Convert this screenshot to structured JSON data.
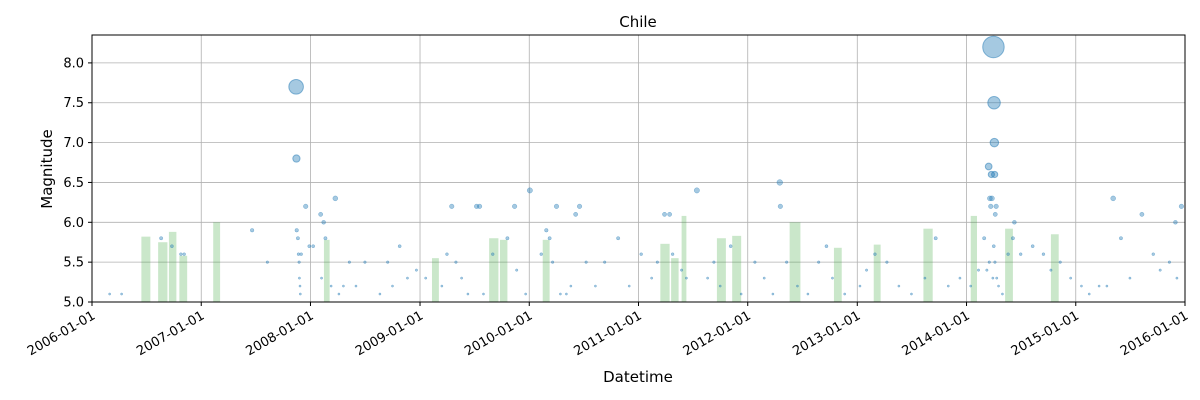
{
  "chart_data": {
    "type": "scatter",
    "title": "Chile",
    "xlabel": "Datetime",
    "ylabel": "Magnitude",
    "xlim": [
      "2006-01-01",
      "2016-01-01"
    ],
    "ylim": [
      5.0,
      8.35
    ],
    "x_ticks": [
      "2006-01-01",
      "2007-01-01",
      "2008-01-01",
      "2009-01-01",
      "2010-01-01",
      "2011-01-01",
      "2012-01-01",
      "2013-01-01",
      "2014-01-01",
      "2015-01-01",
      "2016-01-01"
    ],
    "y_ticks": [
      5.0,
      5.5,
      6.0,
      6.5,
      7.0,
      7.5,
      8.0
    ],
    "grid": true,
    "colors": {
      "points": "#1f77b4",
      "bars": "#2ca02c"
    },
    "highlight_points": [
      {
        "date": "2007-11-14",
        "mag": 7.7
      },
      {
        "date": "2007-11-15",
        "mag": 6.8
      },
      {
        "date": "2007-11-16",
        "mag": 5.9
      },
      {
        "date": "2007-12-16",
        "mag": 6.2
      },
      {
        "date": "2008-02-04",
        "mag": 6.1
      },
      {
        "date": "2008-02-14",
        "mag": 6.0
      },
      {
        "date": "2008-03-24",
        "mag": 6.3
      },
      {
        "date": "2009-04-17",
        "mag": 6.2
      },
      {
        "date": "2009-07-09",
        "mag": 6.2
      },
      {
        "date": "2009-07-19",
        "mag": 6.2
      },
      {
        "date": "2009-11-13",
        "mag": 6.2
      },
      {
        "date": "2010-01-03",
        "mag": 6.4
      },
      {
        "date": "2010-04-02",
        "mag": 6.2
      },
      {
        "date": "2010-06-05",
        "mag": 6.1
      },
      {
        "date": "2010-06-18",
        "mag": 6.2
      },
      {
        "date": "2011-03-29",
        "mag": 6.1
      },
      {
        "date": "2011-04-15",
        "mag": 6.1
      },
      {
        "date": "2011-07-15",
        "mag": 6.4
      },
      {
        "date": "2012-04-17",
        "mag": 6.5
      },
      {
        "date": "2012-04-19",
        "mag": 6.2
      },
      {
        "date": "2014-03-16",
        "mag": 6.7
      },
      {
        "date": "2014-03-20",
        "mag": 6.3
      },
      {
        "date": "2014-03-23",
        "mag": 6.2
      },
      {
        "date": "2014-03-25",
        "mag": 6.6
      },
      {
        "date": "2014-03-27",
        "mag": 6.3
      },
      {
        "date": "2014-04-01",
        "mag": 8.2
      },
      {
        "date": "2014-04-03",
        "mag": 7.5
      },
      {
        "date": "2014-04-04",
        "mag": 7.0
      },
      {
        "date": "2014-04-05",
        "mag": 6.6
      },
      {
        "date": "2014-04-07",
        "mag": 6.1
      },
      {
        "date": "2014-04-10",
        "mag": 6.2
      },
      {
        "date": "2014-06-10",
        "mag": 6.0
      },
      {
        "date": "2015-05-06",
        "mag": 6.3
      },
      {
        "date": "2015-08-10",
        "mag": 6.1
      },
      {
        "date": "2015-11-30",
        "mag": 6.0
      },
      {
        "date": "2015-12-20",
        "mag": 6.2
      }
    ],
    "background_points": [
      {
        "date": "2006-03-01",
        "mag": 5.1
      },
      {
        "date": "2006-04-10",
        "mag": 5.1
      },
      {
        "date": "2006-08-20",
        "mag": 5.8
      },
      {
        "date": "2006-09-25",
        "mag": 5.7
      },
      {
        "date": "2006-10-25",
        "mag": 5.6
      },
      {
        "date": "2006-11-05",
        "mag": 5.6
      },
      {
        "date": "2007-06-20",
        "mag": 5.9
      },
      {
        "date": "2007-08-10",
        "mag": 5.5
      },
      {
        "date": "2007-11-20",
        "mag": 5.8
      },
      {
        "date": "2007-11-22",
        "mag": 5.6
      },
      {
        "date": "2007-11-24",
        "mag": 5.5
      },
      {
        "date": "2007-11-25",
        "mag": 5.3
      },
      {
        "date": "2007-11-27",
        "mag": 5.2
      },
      {
        "date": "2007-11-28",
        "mag": 5.1
      },
      {
        "date": "2007-12-01",
        "mag": 5.6
      },
      {
        "date": "2007-12-28",
        "mag": 5.7
      },
      {
        "date": "2008-01-10",
        "mag": 5.7
      },
      {
        "date": "2008-02-07",
        "mag": 5.3
      },
      {
        "date": "2008-02-20",
        "mag": 5.8
      },
      {
        "date": "2008-03-10",
        "mag": 5.2
      },
      {
        "date": "2008-04-05",
        "mag": 5.1
      },
      {
        "date": "2008-04-20",
        "mag": 5.2
      },
      {
        "date": "2008-05-10",
        "mag": 5.5
      },
      {
        "date": "2008-06-01",
        "mag": 5.2
      },
      {
        "date": "2008-07-01",
        "mag": 5.5
      },
      {
        "date": "2008-08-20",
        "mag": 5.1
      },
      {
        "date": "2008-09-15",
        "mag": 5.5
      },
      {
        "date": "2008-10-01",
        "mag": 5.2
      },
      {
        "date": "2008-10-25",
        "mag": 5.7
      },
      {
        "date": "2008-11-20",
        "mag": 5.3
      },
      {
        "date": "2008-12-20",
        "mag": 5.4
      },
      {
        "date": "2009-01-20",
        "mag": 5.3
      },
      {
        "date": "2009-03-15",
        "mag": 5.2
      },
      {
        "date": "2009-04-01",
        "mag": 5.6
      },
      {
        "date": "2009-05-01",
        "mag": 5.5
      },
      {
        "date": "2009-05-20",
        "mag": 5.3
      },
      {
        "date": "2009-06-10",
        "mag": 5.1
      },
      {
        "date": "2009-08-01",
        "mag": 5.1
      },
      {
        "date": "2009-09-01",
        "mag": 5.6
      },
      {
        "date": "2009-10-20",
        "mag": 5.8
      },
      {
        "date": "2009-11-20",
        "mag": 5.4
      },
      {
        "date": "2009-12-20",
        "mag": 5.1
      },
      {
        "date": "2010-02-10",
        "mag": 5.6
      },
      {
        "date": "2010-02-27",
        "mag": 5.9
      },
      {
        "date": "2010-03-10",
        "mag": 5.8
      },
      {
        "date": "2010-03-20",
        "mag": 5.5
      },
      {
        "date": "2010-04-15",
        "mag": 5.1
      },
      {
        "date": "2010-05-05",
        "mag": 5.1
      },
      {
        "date": "2010-05-20",
        "mag": 5.2
      },
      {
        "date": "2010-07-10",
        "mag": 5.5
      },
      {
        "date": "2010-08-10",
        "mag": 5.2
      },
      {
        "date": "2010-09-10",
        "mag": 5.5
      },
      {
        "date": "2010-10-25",
        "mag": 5.8
      },
      {
        "date": "2010-12-01",
        "mag": 5.2
      },
      {
        "date": "2011-01-10",
        "mag": 5.6
      },
      {
        "date": "2011-02-14",
        "mag": 5.3
      },
      {
        "date": "2011-03-05",
        "mag": 5.5
      },
      {
        "date": "2011-04-25",
        "mag": 5.6
      },
      {
        "date": "2011-05-25",
        "mag": 5.4
      },
      {
        "date": "2011-06-10",
        "mag": 5.3
      },
      {
        "date": "2011-08-20",
        "mag": 5.3
      },
      {
        "date": "2011-09-10",
        "mag": 5.5
      },
      {
        "date": "2011-10-01",
        "mag": 5.2
      },
      {
        "date": "2011-11-05",
        "mag": 5.7
      },
      {
        "date": "2011-12-10",
        "mag": 5.1
      },
      {
        "date": "2012-01-25",
        "mag": 5.5
      },
      {
        "date": "2012-02-25",
        "mag": 5.3
      },
      {
        "date": "2012-03-25",
        "mag": 5.1
      },
      {
        "date": "2012-05-10",
        "mag": 5.5
      },
      {
        "date": "2012-06-15",
        "mag": 5.2
      },
      {
        "date": "2012-07-20",
        "mag": 5.1
      },
      {
        "date": "2012-08-25",
        "mag": 5.5
      },
      {
        "date": "2012-09-20",
        "mag": 5.7
      },
      {
        "date": "2012-10-10",
        "mag": 5.3
      },
      {
        "date": "2012-11-20",
        "mag": 5.1
      },
      {
        "date": "2013-01-10",
        "mag": 5.2
      },
      {
        "date": "2013-02-01",
        "mag": 5.4
      },
      {
        "date": "2013-03-01",
        "mag": 5.6
      },
      {
        "date": "2013-04-10",
        "mag": 5.5
      },
      {
        "date": "2013-05-20",
        "mag": 5.2
      },
      {
        "date": "2013-07-01",
        "mag": 5.1
      },
      {
        "date": "2013-08-15",
        "mag": 5.3
      },
      {
        "date": "2013-09-20",
        "mag": 5.8
      },
      {
        "date": "2013-11-01",
        "mag": 5.2
      },
      {
        "date": "2013-12-10",
        "mag": 5.3
      },
      {
        "date": "2014-01-15",
        "mag": 5.2
      },
      {
        "date": "2014-02-10",
        "mag": 5.4
      },
      {
        "date": "2014-03-01",
        "mag": 5.8
      },
      {
        "date": "2014-03-10",
        "mag": 5.4
      },
      {
        "date": "2014-03-18",
        "mag": 5.5
      },
      {
        "date": "2014-03-30",
        "mag": 5.3
      },
      {
        "date": "2014-04-02",
        "mag": 5.7
      },
      {
        "date": "2014-04-06",
        "mag": 5.5
      },
      {
        "date": "2014-04-12",
        "mag": 5.3
      },
      {
        "date": "2014-04-18",
        "mag": 5.2
      },
      {
        "date": "2014-05-01",
        "mag": 5.1
      },
      {
        "date": "2014-05-20",
        "mag": 5.6
      },
      {
        "date": "2014-06-05",
        "mag": 5.8
      },
      {
        "date": "2014-07-01",
        "mag": 5.6
      },
      {
        "date": "2014-08-10",
        "mag": 5.7
      },
      {
        "date": "2014-09-15",
        "mag": 5.6
      },
      {
        "date": "2014-10-10",
        "mag": 5.4
      },
      {
        "date": "2014-11-10",
        "mag": 5.5
      },
      {
        "date": "2014-12-15",
        "mag": 5.3
      },
      {
        "date": "2015-01-20",
        "mag": 5.2
      },
      {
        "date": "2015-02-15",
        "mag": 5.1
      },
      {
        "date": "2015-03-20",
        "mag": 5.2
      },
      {
        "date": "2015-04-15",
        "mag": 5.2
      },
      {
        "date": "2015-06-01",
        "mag": 5.8
      },
      {
        "date": "2015-07-01",
        "mag": 5.3
      },
      {
        "date": "2015-09-17",
        "mag": 5.6
      },
      {
        "date": "2015-10-10",
        "mag": 5.4
      },
      {
        "date": "2015-11-10",
        "mag": 5.5
      },
      {
        "date": "2015-12-05",
        "mag": 5.3
      }
    ],
    "bars": [
      {
        "start": "2006-06-15",
        "end": "2006-07-15",
        "height": 5.82
      },
      {
        "start": "2006-08-10",
        "end": "2006-09-10",
        "height": 5.75
      },
      {
        "start": "2006-09-15",
        "end": "2006-10-10",
        "height": 5.88
      },
      {
        "start": "2006-10-20",
        "end": "2006-11-15",
        "height": 5.58
      },
      {
        "start": "2007-02-10",
        "end": "2007-03-05",
        "height": 6.0
      },
      {
        "start": "2008-02-15",
        "end": "2008-03-05",
        "height": 5.78
      },
      {
        "start": "2009-02-10",
        "end": "2009-03-05",
        "height": 5.55
      },
      {
        "start": "2009-08-20",
        "end": "2009-09-20",
        "height": 5.8
      },
      {
        "start": "2009-09-25",
        "end": "2009-10-20",
        "height": 5.78
      },
      {
        "start": "2010-02-15",
        "end": "2010-03-10",
        "height": 5.78
      },
      {
        "start": "2011-03-15",
        "end": "2011-04-15",
        "height": 5.73
      },
      {
        "start": "2011-04-20",
        "end": "2011-05-15",
        "height": 5.55
      },
      {
        "start": "2011-05-25",
        "end": "2011-06-10",
        "height": 6.08
      },
      {
        "start": "2011-09-20",
        "end": "2011-10-20",
        "height": 5.8
      },
      {
        "start": "2011-11-10",
        "end": "2011-12-10",
        "height": 5.83
      },
      {
        "start": "2012-05-20",
        "end": "2012-06-25",
        "height": 6.0
      },
      {
        "start": "2012-10-15",
        "end": "2012-11-10",
        "height": 5.68
      },
      {
        "start": "2013-02-25",
        "end": "2013-03-20",
        "height": 5.72
      },
      {
        "start": "2013-08-10",
        "end": "2013-09-10",
        "height": 5.92
      },
      {
        "start": "2014-01-15",
        "end": "2014-02-05",
        "height": 6.08
      },
      {
        "start": "2014-05-10",
        "end": "2014-06-05",
        "height": 5.92
      },
      {
        "start": "2014-10-10",
        "end": "2014-11-05",
        "height": 5.85
      }
    ]
  }
}
